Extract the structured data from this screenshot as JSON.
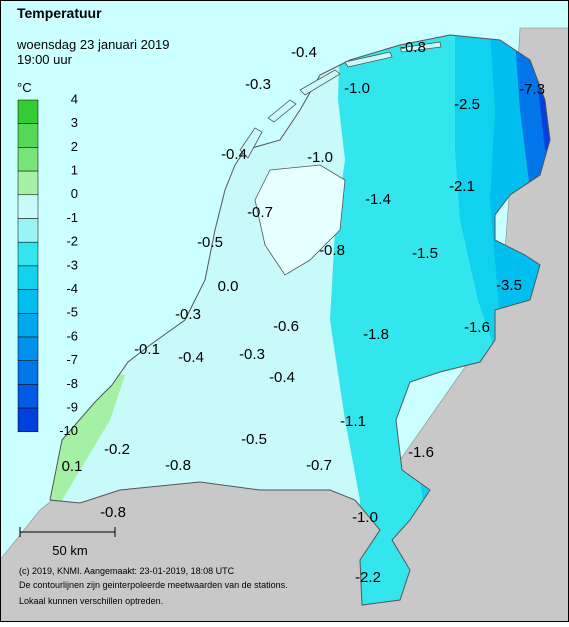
{
  "header": {
    "title": "Temperatuur",
    "date": "woensdag 23 januari 2019",
    "time": "19:00 uur"
  },
  "legend": {
    "unit": "°C",
    "ticks": [
      4,
      3,
      2,
      1,
      0,
      -1,
      -2,
      -3,
      -4,
      -5,
      -6,
      -7,
      -8,
      -9,
      -10
    ],
    "colors": [
      "#33cc33",
      "#55d855",
      "#77e477",
      "#a4f0a4",
      "#c8fafa",
      "#9af4f4",
      "#33e6ee",
      "#11d2ee",
      "#00beee",
      "#00a8ee",
      "#0090ee",
      "#0076ea",
      "#005ce4",
      "#0040dc"
    ]
  },
  "stations": [
    "-0.4",
    "-0.8",
    "-0.3",
    "-1.0",
    "-7.3",
    "-2.5",
    "-0.4",
    "-1.0",
    "-2.1",
    "-1.4",
    "-0.7",
    "-0.5",
    "-0.8",
    "-1.5",
    "-3.5",
    "0.0",
    "-0.3",
    "-0.6",
    "-1.6",
    "-1.8",
    "-0.1",
    "-0.4",
    "-0.3",
    "-0.4",
    "-1.1",
    "-0.2",
    "-0.5",
    "-1.6",
    "0.1",
    "-0.8",
    "-0.7",
    "-0.8",
    "-1.0",
    "-2.2"
  ],
  "scale_bar": "50 km",
  "footer": [
    "(c) 2019, KNMI. Aangemaakt: 23-01-2019, 18:08 UTC",
    "De contourlijnen zijn geinterpoleerde meetwaarden van de stations.",
    "Lokaal kunnen verschillen optreden."
  ]
}
